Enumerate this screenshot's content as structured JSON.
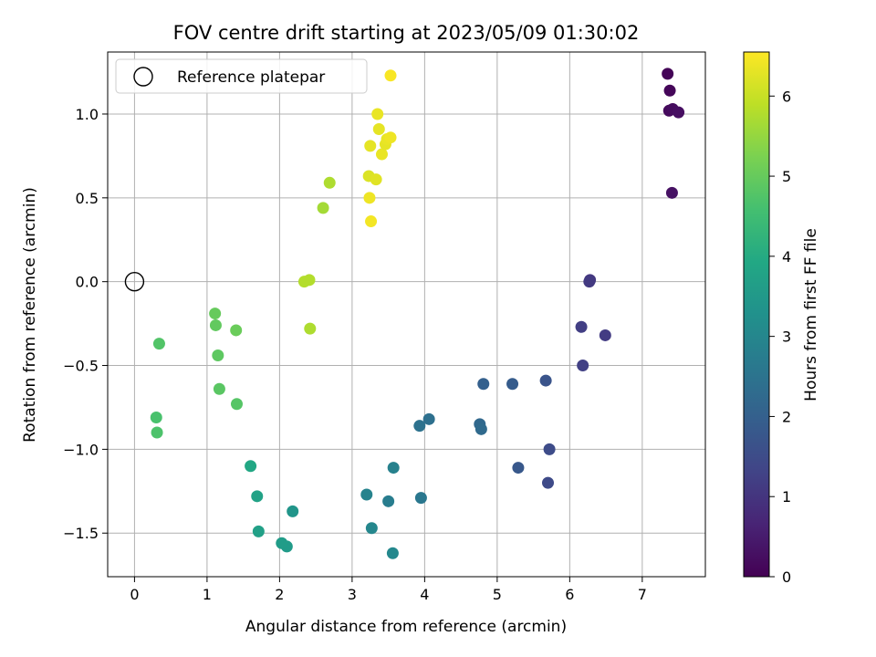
{
  "chart_data": {
    "type": "scatter",
    "title": "FOV centre drift starting at 2023/05/09 01:30:02",
    "xlabel": "Angular distance from reference (arcmin)",
    "ylabel": "Rotation from reference (arcmin)",
    "xlim": [
      -0.37,
      7.87
    ],
    "ylim": [
      -1.76,
      1.37
    ],
    "xticks": [
      0,
      1,
      2,
      3,
      4,
      5,
      6,
      7
    ],
    "yticks": [
      -1.5,
      -1.0,
      -0.5,
      0.0,
      0.5,
      1.0
    ],
    "ytick_labels": [
      "−1.5",
      "−1.0",
      "−0.5",
      "0.0",
      "0.5",
      "1.0"
    ],
    "grid": true,
    "colormap": "viridis",
    "colorbar": {
      "label": "Hours from first FF file",
      "range": [
        0,
        6.55
      ],
      "ticks": [
        0,
        1,
        2,
        3,
        4,
        5,
        6
      ]
    },
    "legend": {
      "position": "top-left",
      "entries": [
        "Reference platepar"
      ]
    },
    "reference_point": {
      "x": 0.0,
      "y": 0.0
    },
    "points": [
      {
        "x": 7.35,
        "y": 1.24,
        "h": 0.05
      },
      {
        "x": 7.38,
        "y": 1.14,
        "h": 0.1
      },
      {
        "x": 7.37,
        "y": 1.02,
        "h": 0.15
      },
      {
        "x": 7.42,
        "y": 1.03,
        "h": 0.2
      },
      {
        "x": 7.5,
        "y": 1.01,
        "h": 0.25
      },
      {
        "x": 7.41,
        "y": 0.53,
        "h": 0.3
      },
      {
        "x": 6.28,
        "y": 0.01,
        "h": 1.05
      },
      {
        "x": 6.27,
        "y": 0.0,
        "h": 1.1
      },
      {
        "x": 6.16,
        "y": -0.27,
        "h": 1.2
      },
      {
        "x": 6.49,
        "y": -0.32,
        "h": 1.15
      },
      {
        "x": 6.18,
        "y": -0.5,
        "h": 1.25
      },
      {
        "x": 5.72,
        "y": -1.0,
        "h": 1.5
      },
      {
        "x": 5.7,
        "y": -1.2,
        "h": 1.45
      },
      {
        "x": 5.67,
        "y": -0.59,
        "h": 1.7
      },
      {
        "x": 5.29,
        "y": -1.11,
        "h": 1.8
      },
      {
        "x": 5.21,
        "y": -0.61,
        "h": 1.9
      },
      {
        "x": 4.81,
        "y": -0.61,
        "h": 2.0
      },
      {
        "x": 4.76,
        "y": -0.85,
        "h": 2.2
      },
      {
        "x": 4.78,
        "y": -0.88,
        "h": 2.25
      },
      {
        "x": 4.06,
        "y": -0.82,
        "h": 2.4
      },
      {
        "x": 3.93,
        "y": -0.86,
        "h": 2.45
      },
      {
        "x": 3.95,
        "y": -1.29,
        "h": 2.6
      },
      {
        "x": 3.5,
        "y": -1.31,
        "h": 2.75
      },
      {
        "x": 3.57,
        "y": -1.11,
        "h": 2.85
      },
      {
        "x": 3.2,
        "y": -1.27,
        "h": 2.9
      },
      {
        "x": 3.27,
        "y": -1.47,
        "h": 3.0
      },
      {
        "x": 3.56,
        "y": -1.62,
        "h": 3.05
      },
      {
        "x": 2.18,
        "y": -1.37,
        "h": 3.4
      },
      {
        "x": 2.1,
        "y": -1.58,
        "h": 3.55
      },
      {
        "x": 2.03,
        "y": -1.56,
        "h": 3.6
      },
      {
        "x": 1.71,
        "y": -1.49,
        "h": 3.7
      },
      {
        "x": 1.69,
        "y": -1.28,
        "h": 3.75
      },
      {
        "x": 1.6,
        "y": -1.1,
        "h": 3.9
      },
      {
        "x": 1.41,
        "y": -0.73,
        "h": 4.8
      },
      {
        "x": 1.17,
        "y": -0.64,
        "h": 4.85
      },
      {
        "x": 1.15,
        "y": -0.44,
        "h": 4.9
      },
      {
        "x": 1.12,
        "y": -0.26,
        "h": 4.95
      },
      {
        "x": 1.11,
        "y": -0.19,
        "h": 5.0
      },
      {
        "x": 1.4,
        "y": -0.29,
        "h": 5.05
      },
      {
        "x": 0.34,
        "y": -0.37,
        "h": 4.75
      },
      {
        "x": 0.3,
        "y": -0.81,
        "h": 4.65
      },
      {
        "x": 0.31,
        "y": -0.9,
        "h": 4.7
      },
      {
        "x": 2.42,
        "y": -0.28,
        "h": 5.75
      },
      {
        "x": 2.34,
        "y": 0.0,
        "h": 5.8
      },
      {
        "x": 2.41,
        "y": 0.01,
        "h": 5.8
      },
      {
        "x": 2.6,
        "y": 0.44,
        "h": 5.65
      },
      {
        "x": 2.69,
        "y": 0.59,
        "h": 5.75
      },
      {
        "x": 3.26,
        "y": 0.36,
        "h": 6.45
      },
      {
        "x": 3.24,
        "y": 0.5,
        "h": 6.4
      },
      {
        "x": 3.23,
        "y": 0.63,
        "h": 6.2
      },
      {
        "x": 3.33,
        "y": 0.61,
        "h": 6.25
      },
      {
        "x": 3.25,
        "y": 0.81,
        "h": 6.3
      },
      {
        "x": 3.41,
        "y": 0.76,
        "h": 6.35
      },
      {
        "x": 3.46,
        "y": 0.82,
        "h": 6.3
      },
      {
        "x": 3.48,
        "y": 0.85,
        "h": 6.35
      },
      {
        "x": 3.53,
        "y": 0.86,
        "h": 6.4
      },
      {
        "x": 3.37,
        "y": 0.91,
        "h": 6.3
      },
      {
        "x": 3.35,
        "y": 1.0,
        "h": 6.35
      },
      {
        "x": 3.53,
        "y": 1.23,
        "h": 6.5
      }
    ]
  }
}
